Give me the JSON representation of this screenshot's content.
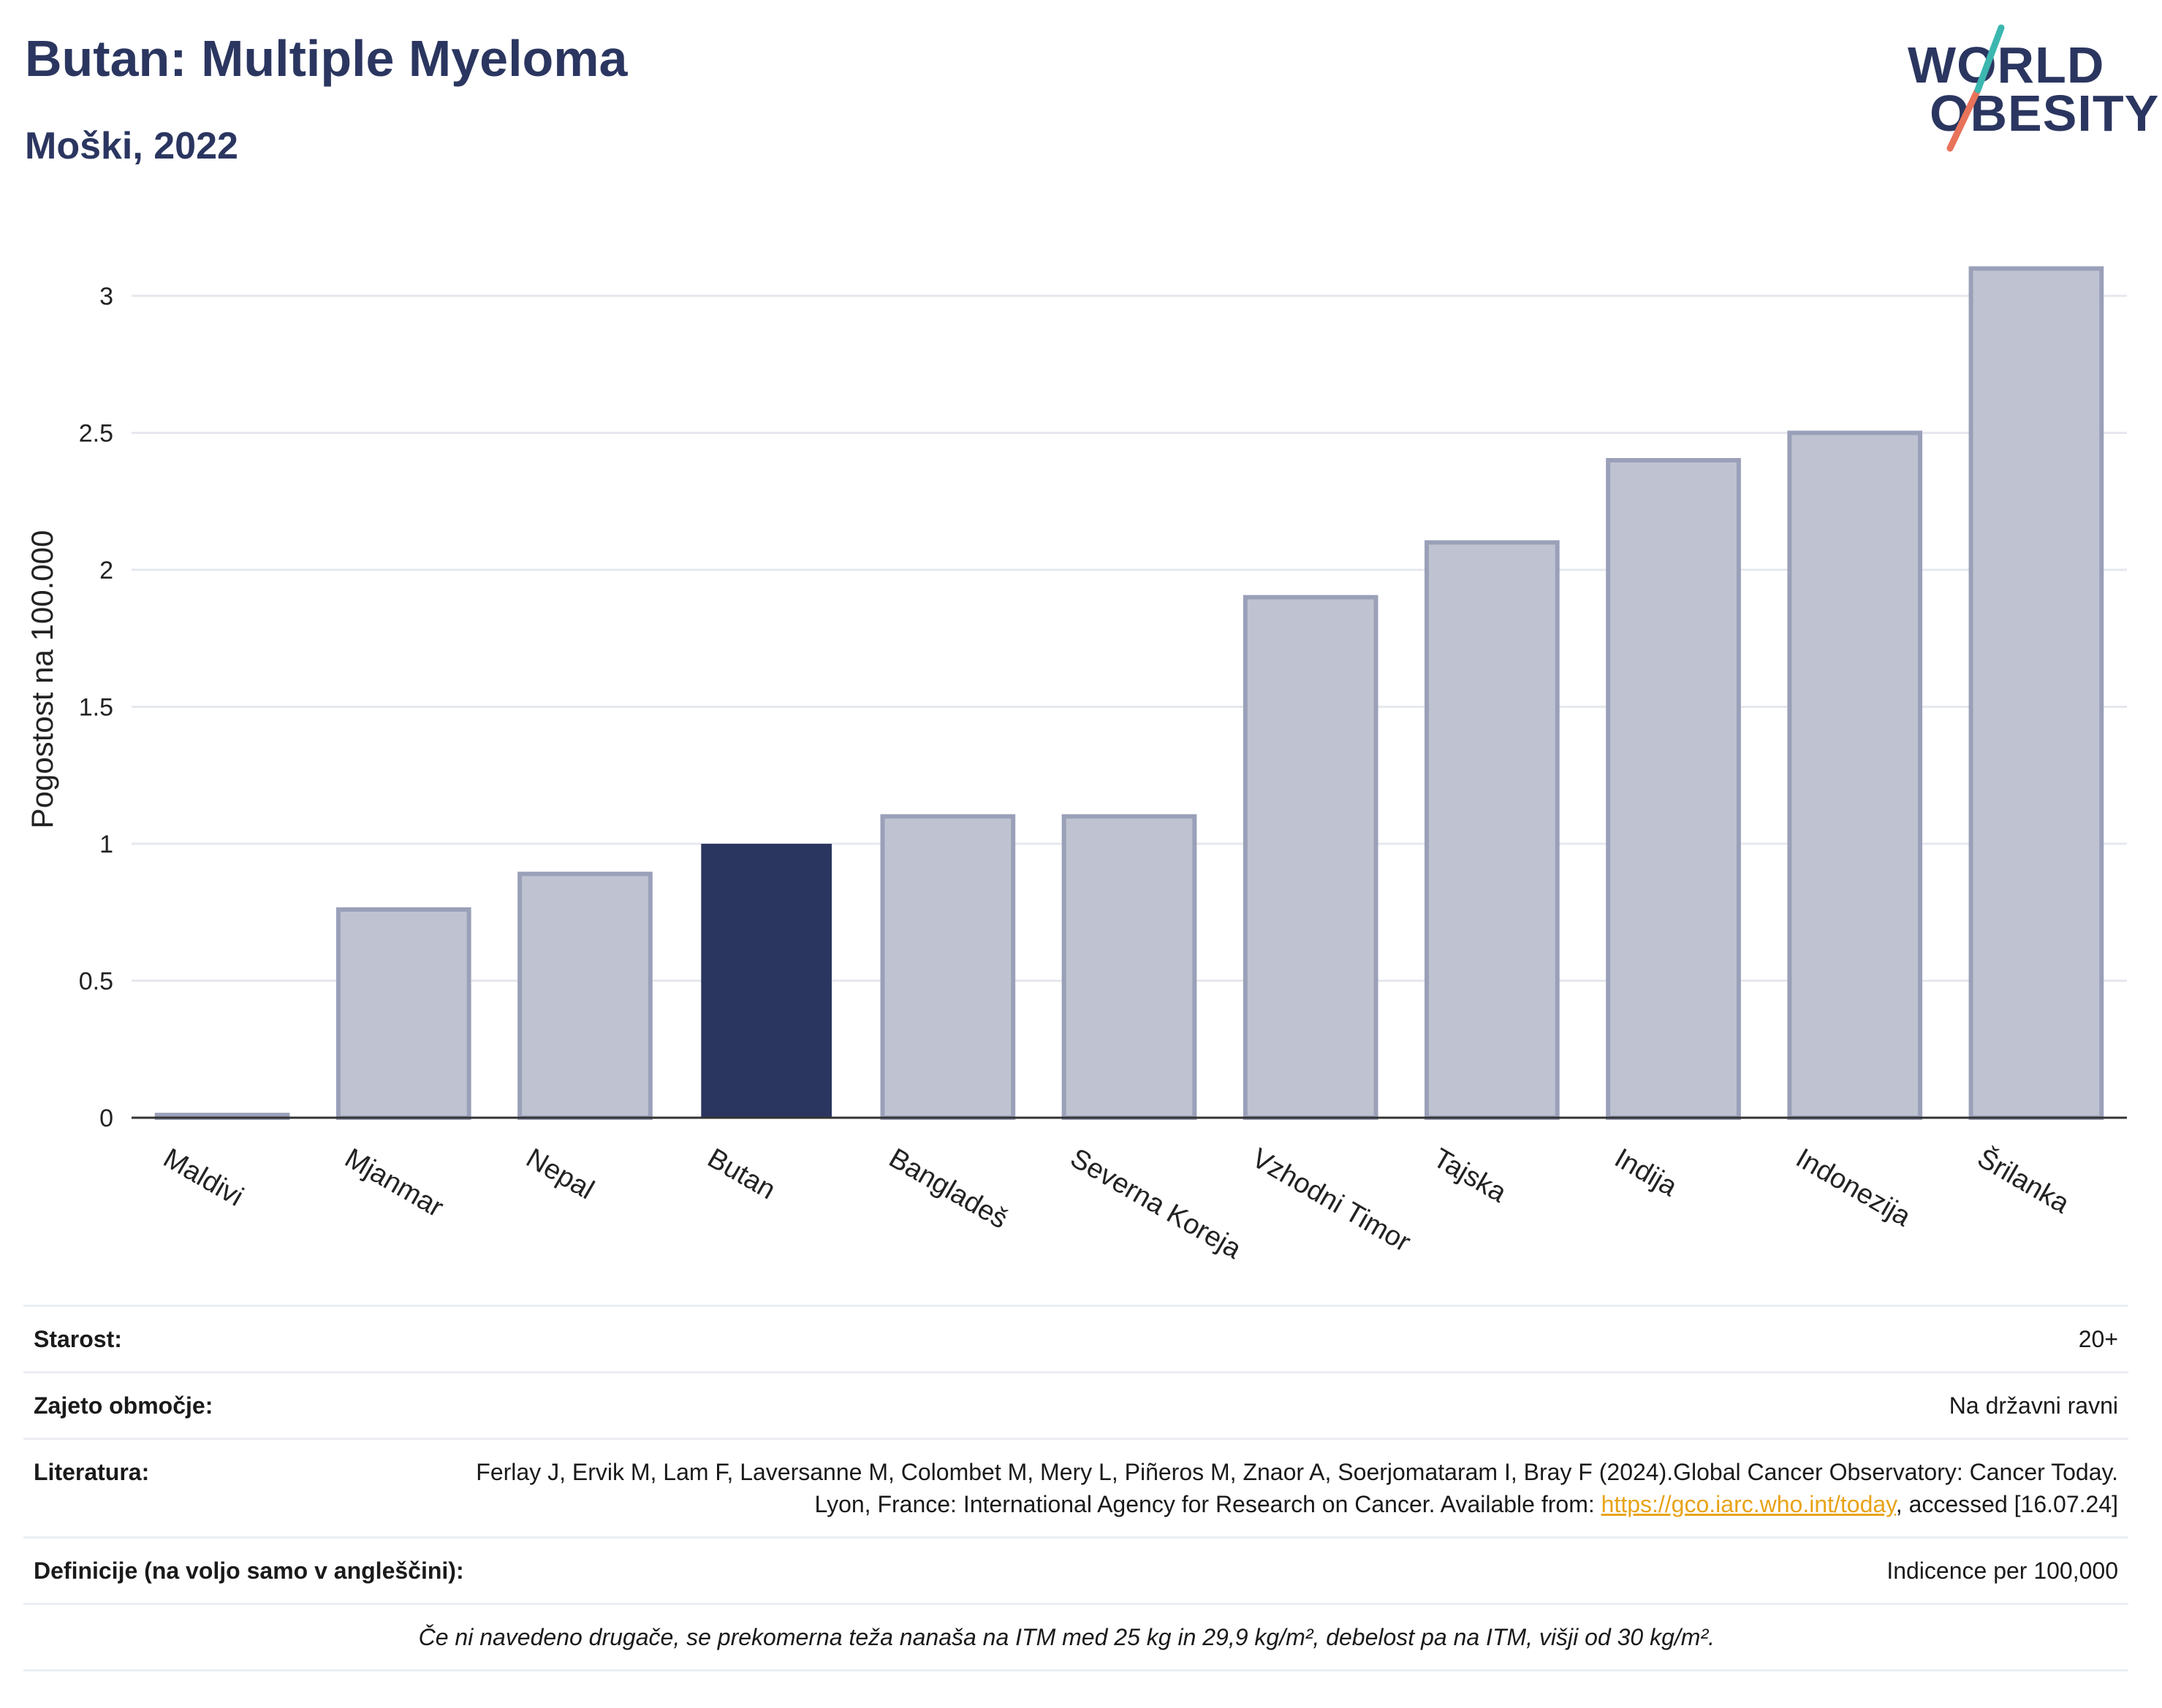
{
  "header": {
    "title": "Butan: Multiple Myeloma",
    "subtitle": "Moški, 2022"
  },
  "logo": {
    "line1": "WORLD",
    "line2": "OBESITY"
  },
  "chart_data": {
    "type": "bar",
    "ylabel": "Pogostost na 100.000",
    "ylim": [
      0,
      3.2
    ],
    "yticks": [
      "0",
      "0.5",
      "1",
      "1.5",
      "2",
      "2.5",
      "3"
    ],
    "grid": true,
    "highlight": "Butan",
    "highlight_color": "#2b3660",
    "bar_color": "#bfc3d1",
    "bar_edge_color": "#9aa0b8",
    "categories": [
      "Maldivi",
      "Mjanmar",
      "Nepal",
      "Butan",
      "Bangladeš",
      "Severna Koreja",
      "Vzhodni Timor",
      "Tajska",
      "Indija",
      "Indonezija",
      "Šrilanka"
    ],
    "values": [
      0.01,
      0.76,
      0.89,
      1.0,
      1.1,
      1.1,
      1.9,
      2.1,
      2.4,
      2.5,
      3.1
    ]
  },
  "info": {
    "age_label": "Starost:",
    "age_value": "20+",
    "coverage_label": "Zajeto območje:",
    "coverage_value": "Na državni ravni",
    "literature_label": "Literatura:",
    "literature_text": "Ferlay J, Ervik M, Lam F, Laversanne M, Colombet M, Mery L, Piñeros M, Znaor A, Soerjomataram I, Bray F (2024).Global Cancer Observatory: Cancer Today. Lyon, France: International Agency for Research on Cancer. Available from: ",
    "literature_link": "https://gco.iarc.who.int/today",
    "literature_suffix": ", accessed [16.07.24]",
    "definitions_label": "Definicije (na voljo samo v angleščini):",
    "definitions_value": "Indicence per 100,000",
    "note": "Če ni navedeno drugače, se prekomerna teža nanaša na ITM med 25 kg in 29,9 kg/m², debelost pa na ITM, višji od 30 kg/m²."
  }
}
